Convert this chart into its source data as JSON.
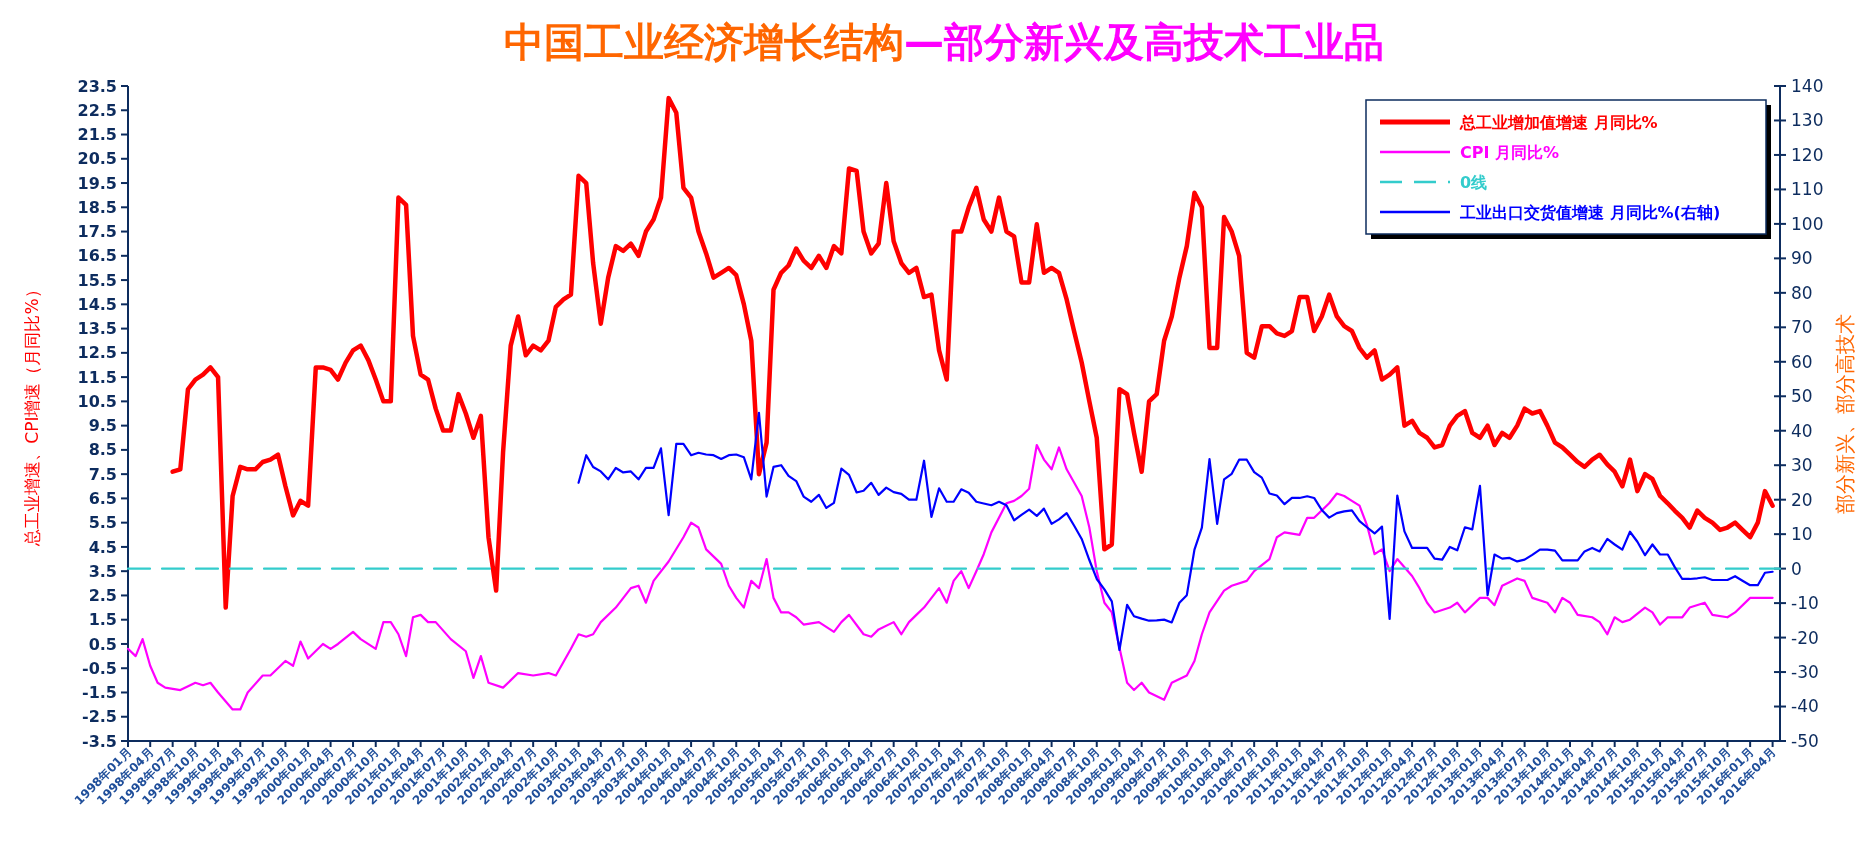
{
  "chart_data": {
    "type": "line",
    "title": "中国工业经济增长结构",
    "subtitle": "—部分新兴及高技术工业品",
    "ylabel": "总工业增速、CPI增速（月同比%）",
    "y2label": "部分新兴、部分高技术",
    "legend": "top right",
    "grid": false,
    "xlim": [
      "1998-01",
      "2016-05"
    ],
    "ylim": [
      -3.5,
      23.5
    ],
    "yticks": [
      -3.5,
      -2.5,
      -1.5,
      -0.5,
      0.5,
      1.5,
      2.5,
      3.5,
      4.5,
      5.5,
      6.5,
      7.5,
      8.5,
      9.5,
      10.5,
      11.5,
      12.5,
      13.5,
      14.5,
      15.5,
      16.5,
      17.5,
      18.5,
      19.5,
      20.5,
      21.5,
      22.5,
      23.5
    ],
    "y2lim": [
      -50,
      140
    ],
    "y2ticks": [
      -50,
      -40,
      -30,
      -20,
      -10,
      0,
      10,
      20,
      30,
      40,
      50,
      60,
      70,
      80,
      90,
      100,
      110,
      120,
      130,
      140
    ],
    "xticks": [
      {
        "value": "1998-01",
        "label": "1998年01月"
      },
      {
        "value": "1998-04",
        "label": "1998年04月"
      },
      {
        "value": "1998-07",
        "label": "1998年07月"
      },
      {
        "value": "1998-10",
        "label": "1998年10月"
      },
      {
        "value": "1999-01",
        "label": "1999年01月"
      },
      {
        "value": "1999-04",
        "label": "1999年04月"
      },
      {
        "value": "1999-07",
        "label": "1999年07月"
      },
      {
        "value": "1999-10",
        "label": "1999年10月"
      },
      {
        "value": "2000-01",
        "label": "2000年01月"
      },
      {
        "value": "2000-04",
        "label": "2000年04月"
      },
      {
        "value": "2000-07",
        "label": "2000年07月"
      },
      {
        "value": "2000-10",
        "label": "2000年10月"
      },
      {
        "value": "2001-01",
        "label": "2001年01月"
      },
      {
        "value": "2001-04",
        "label": "2001年04月"
      },
      {
        "value": "2001-07",
        "label": "2001年07月"
      },
      {
        "value": "2001-10",
        "label": "2001年10月"
      },
      {
        "value": "2002-01",
        "label": "2002年01月"
      },
      {
        "value": "2002-04",
        "label": "2002年04月"
      },
      {
        "value": "2002-07",
        "label": "2002年07月"
      },
      {
        "value": "2002-10",
        "label": "2002年10月"
      },
      {
        "value": "2003-01",
        "label": "2003年01月"
      },
      {
        "value": "2003-04",
        "label": "2003年04月"
      },
      {
        "value": "2003-07",
        "label": "2003年07月"
      },
      {
        "value": "2003-10",
        "label": "2003年10月"
      },
      {
        "value": "2004-01",
        "label": "2004年01月"
      },
      {
        "value": "2004-04",
        "label": "2004年04月"
      },
      {
        "value": "2004-07",
        "label": "2004年07月"
      },
      {
        "value": "2004-10",
        "label": "2004年10月"
      },
      {
        "value": "2005-01",
        "label": "2005年01月"
      },
      {
        "value": "2005-04",
        "label": "2005年04月"
      },
      {
        "value": "2005-07",
        "label": "2005年07月"
      },
      {
        "value": "2005-10",
        "label": "2005年10月"
      },
      {
        "value": "2006-01",
        "label": "2006年01月"
      },
      {
        "value": "2006-04",
        "label": "2006年04月"
      },
      {
        "value": "2006-07",
        "label": "2006年07月"
      },
      {
        "value": "2006-10",
        "label": "2006年10月"
      },
      {
        "value": "2007-01",
        "label": "2007年01月"
      },
      {
        "value": "2007-04",
        "label": "2007年04月"
      },
      {
        "value": "2007-07",
        "label": "2007年07月"
      },
      {
        "value": "2007-10",
        "label": "2007年10月"
      },
      {
        "value": "2008-01",
        "label": "2008年01月"
      },
      {
        "value": "2008-04",
        "label": "2008年04月"
      },
      {
        "value": "2008-07",
        "label": "2008年07月"
      },
      {
        "value": "2008-10",
        "label": "2008年10月"
      },
      {
        "value": "2009-01",
        "label": "2009年01月"
      },
      {
        "value": "2009-04",
        "label": "2009年04月"
      },
      {
        "value": "2009-07",
        "label": "2009年07月"
      },
      {
        "value": "2009-10",
        "label": "2009年10月"
      },
      {
        "value": "2010-01",
        "label": "2010年01月"
      },
      {
        "value": "2010-04",
        "label": "2010年04月"
      },
      {
        "value": "2010-07",
        "label": "2010年07月"
      },
      {
        "value": "2010-10",
        "label": "2010年10月"
      },
      {
        "value": "2011-01",
        "label": "2011年01月"
      },
      {
        "value": "2011-04",
        "label": "2011年04月"
      },
      {
        "value": "2011-07",
        "label": "2011年07月"
      },
      {
        "value": "2011-10",
        "label": "2011年10月"
      },
      {
        "value": "2012-01",
        "label": "2012年01月"
      },
      {
        "value": "2012-04",
        "label": "2012年04月"
      },
      {
        "value": "2012-07",
        "label": "2012年07月"
      },
      {
        "value": "2012-10",
        "label": "2012年10月"
      },
      {
        "value": "2013-01",
        "label": "2013年01月"
      },
      {
        "value": "2013-04",
        "label": "2013年04月"
      },
      {
        "value": "2013-07",
        "label": "2013年07月"
      },
      {
        "value": "2013-10",
        "label": "2013年10月"
      },
      {
        "value": "2014-01",
        "label": "2014年01月"
      },
      {
        "value": "2014-04",
        "label": "2014年04月"
      },
      {
        "value": "2014-07",
        "label": "2014年07月"
      },
      {
        "value": "2014-10",
        "label": "2014年10月"
      },
      {
        "value": "2015-01",
        "label": "2015年01月"
      },
      {
        "value": "2015-04",
        "label": "2015年04月"
      },
      {
        "value": "2015-07",
        "label": "2015年07月"
      },
      {
        "value": "2015-10",
        "label": "2015年10月"
      },
      {
        "value": "2016-01",
        "label": "2016年01月"
      },
      {
        "value": "2016-04",
        "label": "2016年04月"
      }
    ],
    "series": [
      {
        "name": "总工业增加值增速 月同比%",
        "color": "#ff0000",
        "x": [
          "1998-07",
          "1998-08",
          "1998-09",
          "1998-10",
          "1998-11",
          "1998-12",
          "1999-01",
          "1999-02",
          "1999-03",
          "1999-04",
          "1999-05",
          "1999-06",
          "1999-07",
          "1999-08",
          "1999-09",
          "1999-10",
          "1999-11",
          "1999-12",
          "2000-01",
          "2000-02",
          "2000-03",
          "2000-04",
          "2000-05",
          "2000-06",
          "2000-07",
          "2000-08",
          "2000-09",
          "2000-10",
          "2000-11",
          "2000-12",
          "2001-01",
          "2001-02",
          "2001-03",
          "2001-04",
          "2001-05",
          "2001-06",
          "2001-07",
          "2001-08",
          "2001-09",
          "2001-10",
          "2001-11",
          "2001-12",
          "2002-01",
          "2002-02",
          "2002-03",
          "2002-04",
          "2002-05",
          "2002-06",
          "2002-07",
          "2002-08",
          "2002-09",
          "2002-10",
          "2002-11",
          "2002-12",
          "2003-01",
          "2003-02",
          "2003-03",
          "2003-04",
          "2003-05",
          "2003-06",
          "2003-07",
          "2003-08",
          "2003-09",
          "2003-10",
          "2003-11",
          "2003-12",
          "2004-01",
          "2004-02",
          "2004-03",
          "2004-04",
          "2004-05",
          "2004-06",
          "2004-07",
          "2004-08",
          "2004-09",
          "2004-10",
          "2004-11",
          "2004-12",
          "2005-01",
          "2005-02",
          "2005-03",
          "2005-04",
          "2005-05",
          "2005-06",
          "2005-07",
          "2005-08",
          "2005-09",
          "2005-10",
          "2005-11",
          "2005-12",
          "2006-01",
          "2006-02",
          "2006-03",
          "2006-04",
          "2006-05",
          "2006-06",
          "2006-07",
          "2006-08",
          "2006-09",
          "2006-10",
          "2006-11",
          "2006-12",
          "2007-01",
          "2007-02",
          "2007-03",
          "2007-04",
          "2007-05",
          "2007-06",
          "2007-07",
          "2007-08",
          "2007-09",
          "2007-10",
          "2007-11",
          "2007-12",
          "2008-01",
          "2008-02",
          "2008-03",
          "2008-04",
          "2008-05",
          "2008-06",
          "2008-07",
          "2008-08",
          "2008-09",
          "2008-10",
          "2008-11",
          "2008-12",
          "2009-01",
          "2009-02",
          "2009-03",
          "2009-04",
          "2009-05",
          "2009-06",
          "2009-07",
          "2009-08",
          "2009-09",
          "2009-10",
          "2009-11",
          "2009-12",
          "2010-01",
          "2010-02",
          "2010-03",
          "2010-04",
          "2010-05",
          "2010-06",
          "2010-07",
          "2010-08",
          "2010-09",
          "2010-10",
          "2010-11",
          "2010-12",
          "2011-01",
          "2011-02",
          "2011-03",
          "2011-04",
          "2011-05",
          "2011-06",
          "2011-07",
          "2011-08",
          "2011-09",
          "2011-10",
          "2011-11",
          "2011-12",
          "2012-01",
          "2012-02",
          "2012-03",
          "2012-04",
          "2012-05",
          "2012-06",
          "2012-07",
          "2012-08",
          "2012-09",
          "2012-10",
          "2012-11",
          "2012-12",
          "2013-01",
          "2013-02",
          "2013-03",
          "2013-04",
          "2013-05",
          "2013-06",
          "2013-07",
          "2013-08",
          "2013-09",
          "2013-10",
          "2013-11",
          "2013-12",
          "2014-01",
          "2014-02",
          "2014-03",
          "2014-04",
          "2014-05",
          "2014-06",
          "2014-07",
          "2014-08",
          "2014-09",
          "2014-10",
          "2014-11",
          "2014-12",
          "2015-01",
          "2015-02",
          "2015-03",
          "2015-04",
          "2015-05",
          "2015-06",
          "2015-07",
          "2015-08",
          "2015-09",
          "2015-10",
          "2015-11",
          "2015-12",
          "2016-01",
          "2016-02",
          "2016-03",
          "2016-04"
        ],
        "values": [
          7.6,
          7.7,
          11.0,
          11.4,
          11.6,
          11.9,
          11.5,
          2.0,
          6.6,
          7.8,
          7.7,
          7.7,
          8.0,
          8.1,
          8.3,
          7.0,
          5.8,
          6.4,
          6.2,
          11.9,
          11.9,
          11.8,
          11.4,
          12.1,
          12.6,
          12.8,
          12.2,
          11.4,
          10.5,
          10.5,
          18.9,
          18.6,
          13.2,
          11.6,
          11.4,
          10.2,
          9.3,
          9.3,
          10.8,
          10.0,
          9.0,
          9.9,
          4.9,
          2.7,
          8.4,
          12.8,
          14.0,
          12.4,
          12.8,
          12.6,
          13.0,
          14.4,
          14.7,
          14.9,
          19.8,
          19.5,
          16.2,
          13.7,
          15.6,
          16.9,
          16.7,
          17.0,
          16.5,
          17.5,
          18.0,
          18.9,
          23.0,
          22.4,
          19.3,
          18.9,
          17.5,
          16.6,
          15.6,
          15.8,
          16.0,
          15.7,
          14.5,
          13.0,
          7.5,
          8.8,
          15.1,
          15.8,
          16.1,
          16.8,
          16.3,
          16.0,
          16.5,
          16.0,
          16.9,
          16.6,
          20.1,
          20.0,
          17.5,
          16.6,
          17.0,
          19.5,
          17.1,
          16.2,
          15.8,
          16.0,
          14.8,
          14.9,
          12.6,
          11.4,
          17.5,
          17.5,
          18.5,
          19.3,
          18.0,
          17.5,
          18.9,
          17.5,
          17.3,
          15.4,
          15.4,
          17.8,
          15.8,
          16.0,
          15.8,
          14.7,
          13.4,
          12.1,
          10.5,
          9.0,
          4.4,
          4.6,
          11.0,
          10.8,
          9.2,
          7.6,
          10.5,
          10.8,
          13.0,
          14.0,
          15.6,
          16.9,
          19.1,
          18.5,
          12.7,
          12.7,
          18.1,
          17.5,
          16.5,
          12.5,
          12.3,
          13.6,
          13.6,
          13.3,
          13.2,
          13.4,
          14.8,
          14.8,
          13.4,
          14.0,
          14.9,
          14.0,
          13.6,
          13.4,
          12.7,
          12.3,
          12.6,
          11.4,
          11.6,
          11.9,
          9.5,
          9.7,
          9.2,
          9.0,
          8.6,
          8.7,
          9.5,
          9.9,
          10.1,
          9.2,
          9.0,
          9.5,
          8.7,
          9.2,
          9.0,
          9.5,
          10.2,
          10.0,
          10.1,
          9.5,
          8.8,
          8.6,
          8.3,
          8.0,
          7.8,
          8.1,
          8.3,
          7.9,
          7.6,
          7.0,
          8.1,
          6.8,
          7.5,
          7.3,
          6.6,
          6.3,
          6.0,
          5.7,
          5.3,
          6.0,
          5.7,
          5.5,
          5.2,
          5.3,
          5.5,
          5.2,
          4.9,
          5.5,
          6.8,
          6.2
        ]
      },
      {
        "name": "CPI 月同比%",
        "color": "#ff00ff",
        "x": [
          "1998-01",
          "1998-02",
          "1998-03",
          "1998-04",
          "1998-05",
          "1998-06",
          "1998-08",
          "1998-10",
          "1998-11",
          "1998-12",
          "1999-01",
          "1999-03",
          "1999-04",
          "1999-05",
          "1999-07",
          "1999-08",
          "1999-10",
          "1999-11",
          "1999-12",
          "2000-01",
          "2000-03",
          "2000-04",
          "2000-05",
          "2000-07",
          "2000-08",
          "2000-10",
          "2000-11",
          "2000-12",
          "2001-01",
          "2001-02",
          "2001-03",
          "2001-04",
          "2001-05",
          "2001-06",
          "2001-08",
          "2001-10",
          "2001-11",
          "2001-12",
          "2002-01",
          "2002-03",
          "2002-05",
          "2002-07",
          "2002-09",
          "2002-10",
          "2002-12",
          "2003-01",
          "2003-02",
          "2003-03",
          "2003-04",
          "2003-06",
          "2003-08",
          "2003-09",
          "2003-10",
          "2003-11",
          "2004-01",
          "2004-03",
          "2004-04",
          "2004-05",
          "2004-06",
          "2004-08",
          "2004-09",
          "2004-10",
          "2004-11",
          "2004-12",
          "2005-01",
          "2005-02",
          "2005-03",
          "2005-04",
          "2005-05",
          "2005-06",
          "2005-07",
          "2005-09",
          "2005-11",
          "2005-12",
          "2006-01",
          "2006-03",
          "2006-04",
          "2006-05",
          "2006-07",
          "2006-08",
          "2006-09",
          "2006-10",
          "2006-11",
          "2007-01",
          "2007-02",
          "2007-03",
          "2007-04",
          "2007-05",
          "2007-06",
          "2007-07",
          "2007-08",
          "2007-10",
          "2007-11",
          "2007-12",
          "2008-01",
          "2008-02",
          "2008-03",
          "2008-04",
          "2008-05",
          "2008-06",
          "2008-08",
          "2008-09",
          "2008-10",
          "2008-11",
          "2008-12",
          "2009-02",
          "2009-03",
          "2009-04",
          "2009-05",
          "2009-07",
          "2009-08",
          "2009-10",
          "2009-11",
          "2009-12",
          "2010-01",
          "2010-03",
          "2010-04",
          "2010-06",
          "2010-07",
          "2010-09",
          "2010-10",
          "2010-11",
          "2011-01",
          "2011-02",
          "2011-03",
          "2011-05",
          "2011-06",
          "2011-07",
          "2011-08",
          "2011-09",
          "2011-10",
          "2011-11",
          "2011-12",
          "2012-01",
          "2012-02",
          "2012-04",
          "2012-05",
          "2012-06",
          "2012-07",
          "2012-09",
          "2012-10",
          "2012-11",
          "2013-01",
          "2013-02",
          "2013-03",
          "2013-04",
          "2013-06",
          "2013-07",
          "2013-08",
          "2013-10",
          "2013-11",
          "2013-12",
          "2014-01",
          "2014-02",
          "2014-04",
          "2014-05",
          "2014-06",
          "2014-07",
          "2014-08",
          "2014-09",
          "2014-11",
          "2014-12",
          "2015-01",
          "2015-02",
          "2015-04",
          "2015-05",
          "2015-07",
          "2015-08",
          "2015-10",
          "2015-11",
          "2016-01",
          "2016-03",
          "2016-04"
        ],
        "values": [
          0.3,
          0.0,
          0.7,
          -0.4,
          -1.1,
          -1.3,
          -1.4,
          -1.1,
          -1.2,
          -1.1,
          -1.5,
          -2.2,
          -2.2,
          -1.5,
          -0.8,
          -0.8,
          -0.2,
          -0.4,
          0.6,
          -0.1,
          0.5,
          0.3,
          0.5,
          1.0,
          0.7,
          0.3,
          1.4,
          1.4,
          0.9,
          0.0,
          1.6,
          1.7,
          1.4,
          1.4,
          0.7,
          0.2,
          -0.9,
          0.0,
          -1.1,
          -1.3,
          -0.7,
          -0.8,
          -0.7,
          -0.8,
          0.3,
          0.9,
          0.8,
          0.9,
          1.4,
          2.0,
          2.8,
          2.9,
          2.2,
          3.1,
          3.9,
          4.9,
          5.5,
          5.3,
          4.4,
          3.8,
          2.9,
          2.4,
          2.0,
          3.1,
          2.8,
          4.0,
          2.4,
          1.8,
          1.8,
          1.6,
          1.3,
          1.4,
          1.0,
          1.4,
          1.7,
          0.9,
          0.8,
          1.1,
          1.4,
          0.9,
          1.4,
          1.7,
          2.0,
          2.8,
          2.2,
          3.1,
          3.5,
          2.8,
          3.5,
          4.2,
          5.1,
          6.3,
          6.4,
          6.6,
          6.9,
          8.7,
          8.1,
          7.7,
          8.6,
          7.7,
          6.6,
          5.3,
          3.5,
          2.2,
          1.8,
          -1.1,
          -1.4,
          -1.1,
          -1.5,
          -1.8,
          -1.1,
          -0.8,
          -0.2,
          0.9,
          1.8,
          2.7,
          2.9,
          3.1,
          3.5,
          4.0,
          4.9,
          5.1,
          5.0,
          5.7,
          5.7,
          6.3,
          6.7,
          6.6,
          6.4,
          6.2,
          5.4,
          4.2,
          4.4,
          3.5,
          4.0,
          3.3,
          2.8,
          2.2,
          1.8,
          2.0,
          2.2,
          1.8,
          2.4,
          2.4,
          2.1,
          2.9,
          3.2,
          3.1,
          2.4,
          2.2,
          1.8,
          2.4,
          2.2,
          1.7,
          1.6,
          1.4,
          0.9,
          1.6,
          1.4,
          1.5,
          2.0,
          1.8,
          1.3,
          1.6,
          1.6,
          2.0,
          2.2,
          1.7,
          1.6,
          1.8,
          2.4,
          2.4,
          2.4
        ]
      },
      {
        "name": "0线",
        "color": "#33cccc",
        "axis": "y2",
        "line_style": "dashed",
        "x": [
          "1998-01",
          "2016-05"
        ],
        "values": [
          0,
          0
        ]
      },
      {
        "name": "工业出口交货值增速 月同比%(右轴)",
        "color": "#0000ff",
        "axis": "y2",
        "x": [
          "2003-01",
          "2003-02",
          "2003-03",
          "2003-04",
          "2003-05",
          "2003-06",
          "2003-07",
          "2003-08",
          "2003-09",
          "2003-10",
          "2003-11",
          "2003-12",
          "2004-01",
          "2004-02",
          "2004-03",
          "2004-04",
          "2004-05",
          "2004-06",
          "2004-07",
          "2004-08",
          "2004-09",
          "2004-10",
          "2004-11",
          "2004-12",
          "2005-01",
          "2005-02",
          "2005-03",
          "2005-04",
          "2005-05",
          "2005-06",
          "2005-07",
          "2005-08",
          "2005-09",
          "2005-10",
          "2005-11",
          "2005-12",
          "2006-01",
          "2006-02",
          "2006-03",
          "2006-04",
          "2006-05",
          "2006-06",
          "2006-07",
          "2006-08",
          "2006-09",
          "2006-10",
          "2006-11",
          "2006-12",
          "2007-01",
          "2007-02",
          "2007-03",
          "2007-04",
          "2007-05",
          "2007-06",
          "2007-07",
          "2007-08",
          "2007-09",
          "2007-10",
          "2007-11",
          "2007-12",
          "2008-01",
          "2008-02",
          "2008-03",
          "2008-04",
          "2008-05",
          "2008-06",
          "2008-07",
          "2008-08",
          "2008-09",
          "2008-10",
          "2008-11",
          "2008-12",
          "2009-01",
          "2009-02",
          "2009-03",
          "2009-04",
          "2009-05",
          "2009-06",
          "2009-07",
          "2009-08",
          "2009-09",
          "2009-10",
          "2009-11",
          "2009-12",
          "2010-01",
          "2010-02",
          "2010-03",
          "2010-04",
          "2010-05",
          "2010-06",
          "2010-07",
          "2010-08",
          "2010-09",
          "2010-10",
          "2010-11",
          "2010-12",
          "2011-01",
          "2011-02",
          "2011-03",
          "2011-04",
          "2011-05",
          "2011-06",
          "2011-07",
          "2011-08",
          "2011-09",
          "2011-10",
          "2011-11",
          "2011-12",
          "2012-01",
          "2012-02",
          "2012-03",
          "2012-04",
          "2012-05",
          "2012-06",
          "2012-07",
          "2012-08",
          "2012-09",
          "2012-10",
          "2012-11",
          "2012-12",
          "2013-01",
          "2013-02",
          "2013-03",
          "2013-04",
          "2013-05",
          "2013-06",
          "2013-07",
          "2013-08",
          "2013-09",
          "2013-10",
          "2013-11",
          "2013-12",
          "2014-01",
          "2014-02",
          "2014-03",
          "2014-04",
          "2014-05",
          "2014-06",
          "2014-07",
          "2014-08",
          "2014-09",
          "2014-10",
          "2014-11",
          "2014-12",
          "2015-01",
          "2015-02",
          "2015-03",
          "2015-04",
          "2015-05",
          "2015-06",
          "2015-07",
          "2015-08",
          "2015-09",
          "2015-10",
          "2015-11",
          "2015-12",
          "2016-01",
          "2016-02",
          "2016-03",
          "2016-04"
        ],
        "values": [
          24.9,
          32.9,
          29.5,
          28.2,
          25.9,
          29.2,
          27.9,
          28.2,
          25.9,
          29.2,
          29.2,
          34.9,
          15.5,
          36.2,
          36.2,
          32.9,
          33.6,
          33.1,
          32.9,
          31.8,
          32.9,
          33.1,
          32.3,
          25.9,
          45.2,
          20.9,
          29.5,
          30.0,
          26.9,
          25.4,
          20.9,
          19.4,
          21.4,
          17.6,
          19.1,
          29.0,
          27.2,
          22.1,
          22.6,
          24.9,
          21.4,
          23.5,
          22.2,
          21.7,
          20.0,
          20.0,
          31.3,
          15.0,
          23.3,
          19.4,
          19.4,
          23.0,
          22.0,
          19.4,
          18.9,
          18.4,
          19.4,
          18.4,
          14.0,
          15.6,
          17.1,
          15.3,
          17.4,
          13.0,
          14.3,
          16.1,
          12.5,
          8.6,
          2.5,
          -3.0,
          -6.0,
          -9.5,
          -23.6,
          -10.5,
          -13.8,
          -14.5,
          -15.1,
          -15.0,
          -14.8,
          -15.6,
          -9.9,
          -7.7,
          5.5,
          11.9,
          31.8,
          13.0,
          25.9,
          27.5,
          31.6,
          31.6,
          28.0,
          26.4,
          21.8,
          21.2,
          18.7,
          20.5,
          20.5,
          21.0,
          20.5,
          17.0,
          14.8,
          16.1,
          16.6,
          16.9,
          13.8,
          12.0,
          10.2,
          12.2,
          -14.6,
          21.2,
          10.8,
          6.0,
          6.0,
          6.0,
          2.9,
          2.6,
          6.3,
          5.3,
          12.0,
          11.4,
          24.0,
          -7.7,
          4.1,
          2.9,
          3.1,
          2.1,
          2.6,
          4.0,
          5.5,
          5.5,
          5.2,
          2.4,
          2.4,
          2.4,
          5.0,
          6.0,
          5.0,
          8.6,
          7.0,
          5.5,
          10.7,
          7.8,
          3.9,
          7.0,
          4.1,
          4.1,
          0.5,
          -3.0,
          -3.0,
          -2.8,
          -2.5,
          -3.3,
          -3.3,
          -3.3,
          -2.2,
          -3.5,
          -4.8,
          -4.8,
          -1.2,
          -0.9
        ]
      }
    ]
  }
}
